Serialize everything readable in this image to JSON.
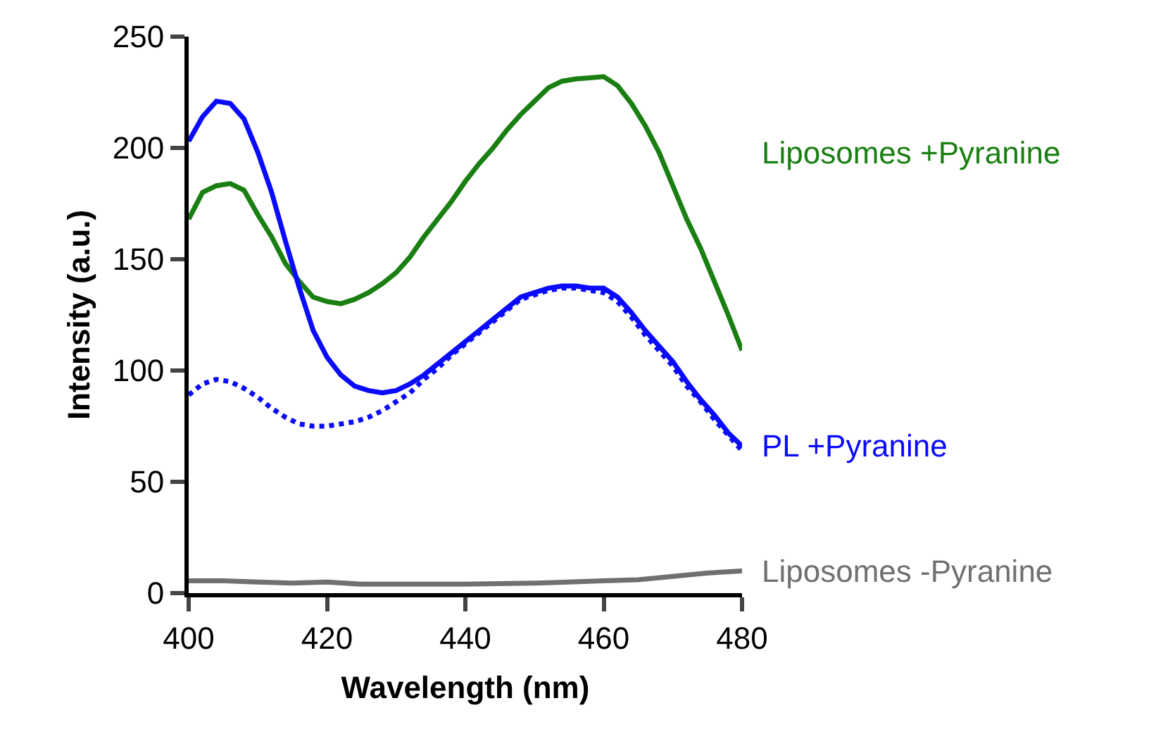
{
  "chart_data": {
    "type": "line",
    "xlabel": "Wavelength (nm)",
    "ylabel": "Intensity (a.u.)",
    "xlim": [
      400,
      480
    ],
    "ylim": [
      0,
      250
    ],
    "xticks": [
      400,
      420,
      440,
      460,
      480
    ],
    "yticks": [
      0,
      50,
      100,
      150,
      200,
      250
    ],
    "legend": false,
    "marker": "none",
    "series": [
      {
        "name": "Liposomes +Pyranine",
        "color": "#1a7f12",
        "line_style": "solid",
        "x": [
          400,
          402,
          404,
          406,
          408,
          410,
          412,
          414,
          416,
          418,
          420,
          422,
          424,
          426,
          428,
          430,
          432,
          434,
          436,
          438,
          440,
          442,
          444,
          446,
          448,
          450,
          452,
          454,
          456,
          458,
          460,
          462,
          464,
          466,
          468,
          470,
          472,
          474,
          476,
          478,
          480
        ],
        "values": [
          168,
          180,
          183,
          184,
          181,
          170,
          160,
          148,
          140,
          133,
          131,
          130,
          132,
          135,
          139,
          144,
          151,
          160,
          168,
          176,
          185,
          193,
          200,
          208,
          215,
          221,
          227,
          230,
          231,
          231.5,
          232,
          228,
          220,
          210,
          198,
          183,
          168,
          155,
          140,
          125,
          109
        ]
      },
      {
        "name": "PL +Pyranine",
        "color": "#0a0aff",
        "line_style": "solid",
        "x": [
          400,
          402,
          404,
          406,
          408,
          410,
          412,
          414,
          416,
          418,
          420,
          422,
          424,
          426,
          428,
          430,
          432,
          434,
          436,
          438,
          440,
          442,
          444,
          446,
          448,
          450,
          452,
          454,
          456,
          458,
          460,
          462,
          464,
          466,
          468,
          470,
          472,
          474,
          476,
          478,
          480
        ],
        "values": [
          203,
          214,
          221,
          220,
          213,
          198,
          180,
          158,
          137,
          118,
          106,
          98,
          93,
          91,
          90,
          91,
          94,
          98,
          103,
          108,
          113,
          118,
          123,
          128,
          133,
          135,
          137,
          138,
          138,
          137,
          137,
          133,
          126,
          118,
          111,
          104,
          95,
          87,
          80,
          72,
          66
        ]
      },
      {
        "color": "#0a0aff",
        "line_style": "dotted",
        "x": [
          400,
          402,
          404,
          406,
          408,
          410,
          412,
          414,
          416,
          418,
          420,
          422,
          424,
          426,
          428,
          430,
          432,
          434,
          436,
          438,
          440,
          442,
          444,
          446,
          448,
          450,
          452,
          454,
          456,
          458,
          460,
          462,
          464,
          466,
          468,
          470,
          472,
          474,
          476,
          478,
          480
        ],
        "values": [
          89,
          94,
          96,
          95,
          92,
          88,
          83,
          79,
          76,
          75,
          75,
          76,
          77,
          79,
          82,
          86,
          90,
          96,
          101,
          107,
          112,
          117,
          122,
          127,
          132,
          134,
          136,
          137,
          137,
          136,
          135,
          131,
          124,
          116,
          109,
          102,
          93,
          86,
          78,
          71,
          64
        ]
      },
      {
        "name": "Liposomes -Pyranine",
        "color": "#707070",
        "line_style": "solid",
        "x": [
          400,
          405,
          410,
          415,
          420,
          425,
          430,
          440,
          450,
          455,
          460,
          465,
          470,
          475,
          480
        ],
        "values": [
          5.5,
          5.5,
          5,
          4.5,
          5,
          4,
          4,
          4,
          4.5,
          5,
          5.5,
          6,
          7.5,
          9,
          10
        ]
      }
    ]
  }
}
